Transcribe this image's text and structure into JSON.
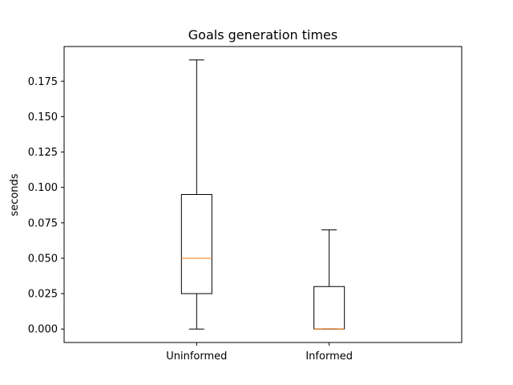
{
  "chart_data": {
    "type": "box",
    "title": "Goals generation times",
    "xlabel": "",
    "ylabel": "seconds",
    "categories": [
      "Uninformed",
      "Informed"
    ],
    "boxes": [
      {
        "category": "Uninformed",
        "whisker_low": 0.0,
        "q1": 0.025,
        "median": 0.05,
        "q3": 0.095,
        "whisker_high": 0.19
      },
      {
        "category": "Informed",
        "whisker_low": 0.0,
        "q1": 0.0,
        "median": 0.0,
        "q3": 0.03,
        "whisker_high": 0.07
      }
    ],
    "ylim": [
      -0.0095,
      0.1995
    ],
    "yticks": [
      0.0,
      0.025,
      0.05,
      0.075,
      0.1,
      0.125,
      0.15,
      0.175
    ],
    "ytick_labels": [
      "0.000",
      "0.025",
      "0.050",
      "0.075",
      "0.100",
      "0.125",
      "0.150",
      "0.175"
    ],
    "grid": false,
    "colors": {
      "box": "#000000",
      "median": "#ff7f0e",
      "axes": "#000000"
    }
  }
}
